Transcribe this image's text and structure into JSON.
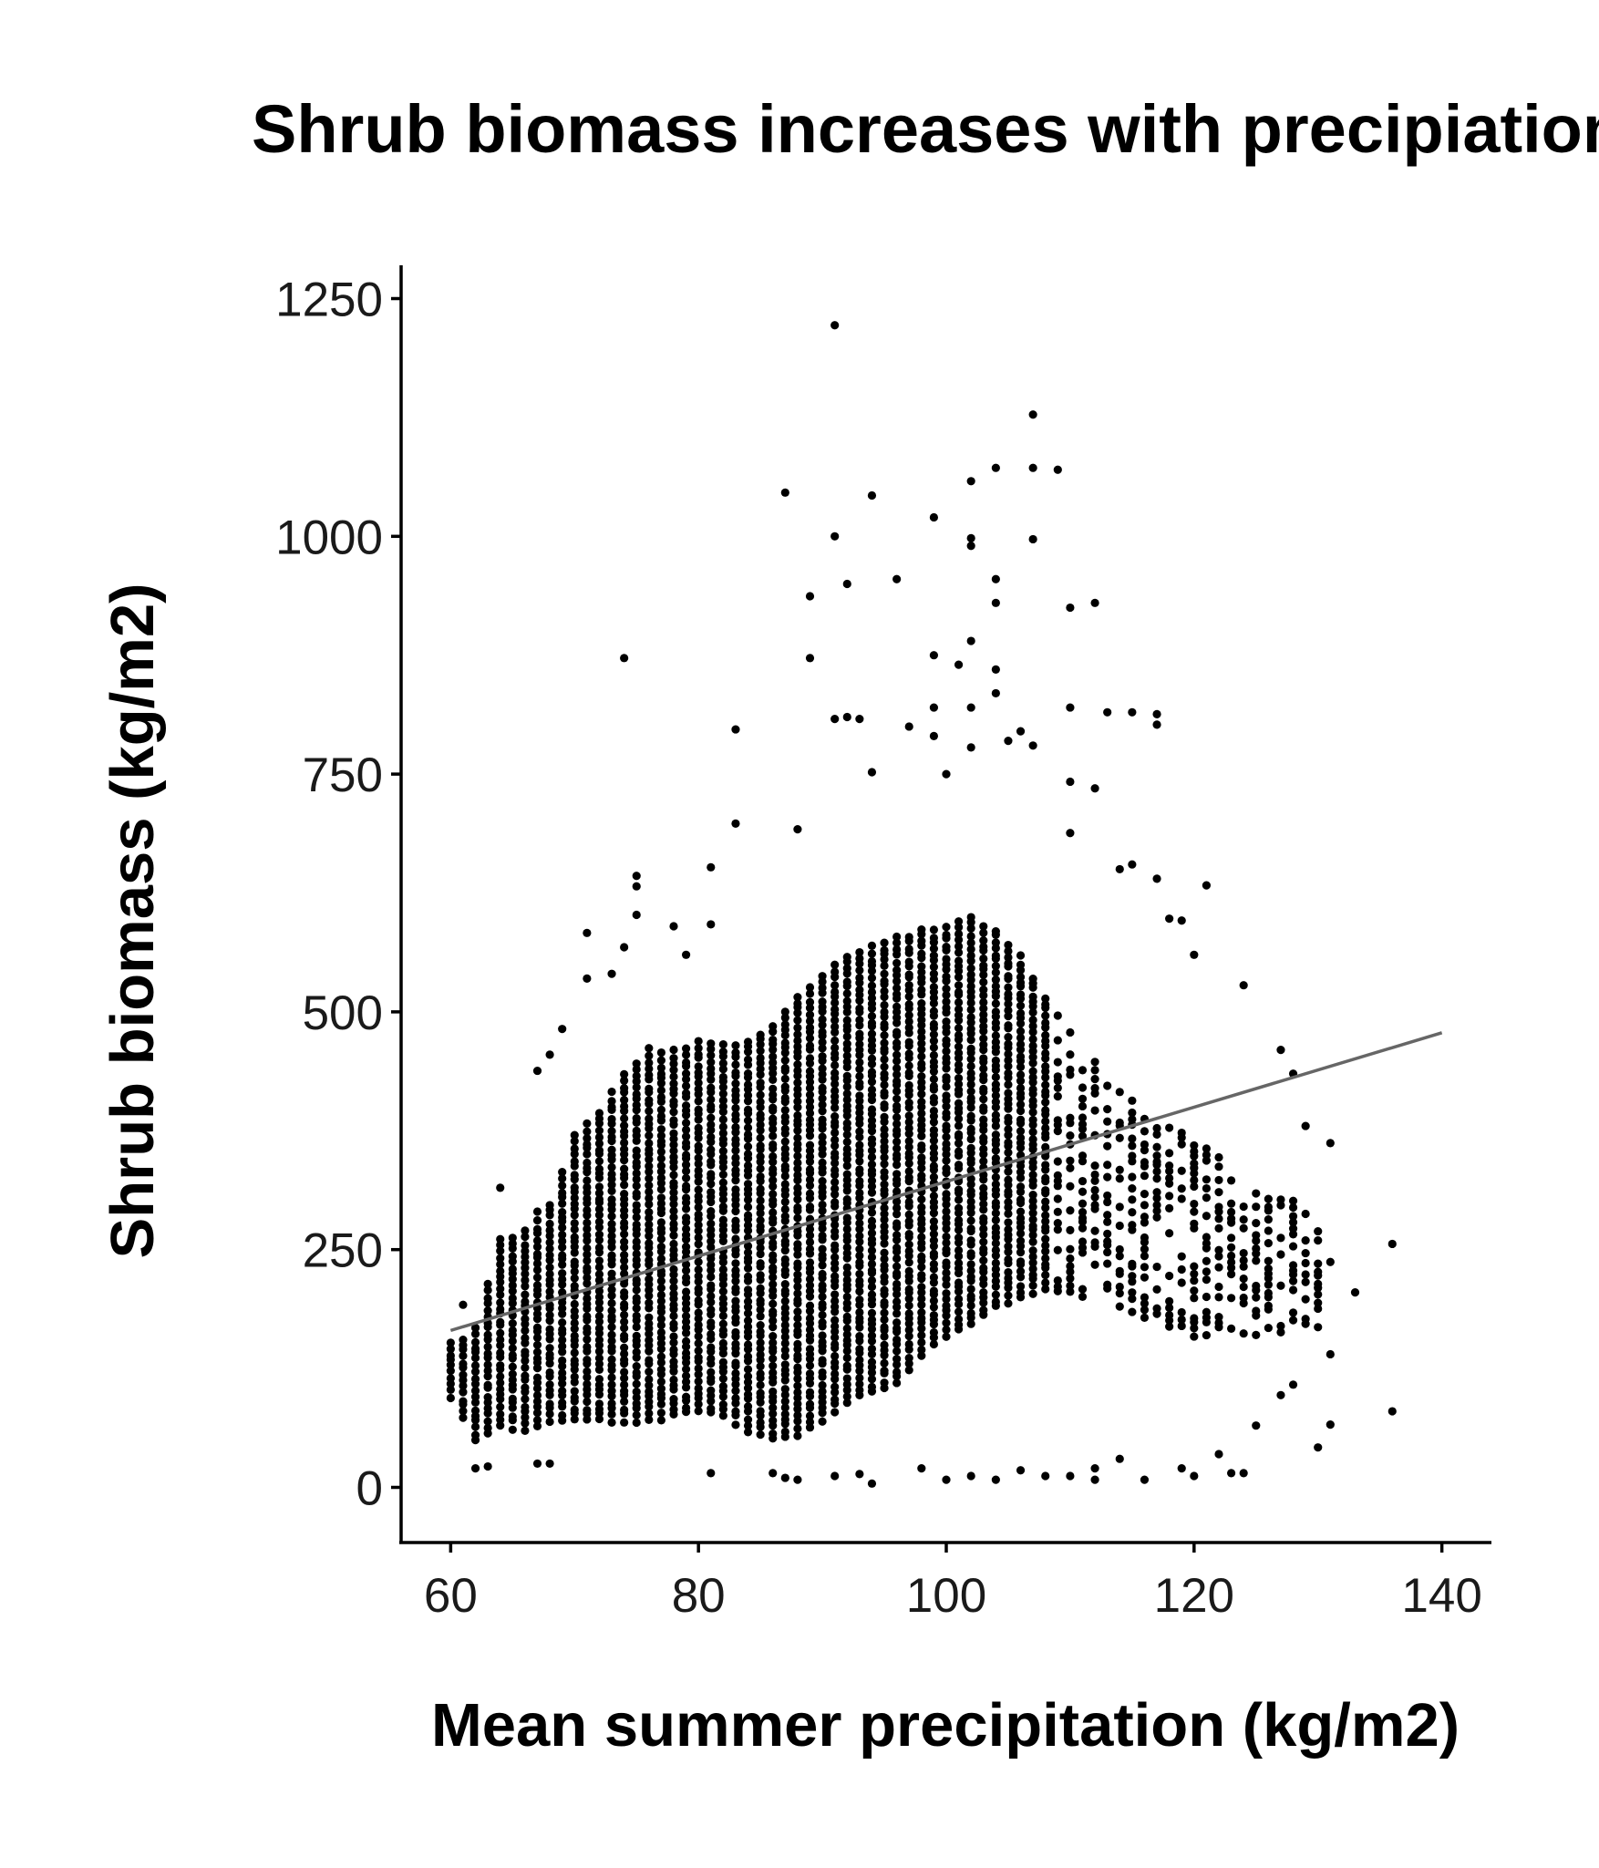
{
  "chart_data": {
    "type": "scatter",
    "title": "Shrub biomass increases with precipiation",
    "xlabel": "Mean summer precipitation (kg/m2)",
    "ylabel": "Shrub biomass (kg/m2)",
    "xlim": [
      56,
      144
    ],
    "ylim": [
      -58,
      1285
    ],
    "x_ticks": [
      60,
      80,
      100,
      120,
      140
    ],
    "y_ticks": [
      0,
      250,
      500,
      750,
      1000,
      1250
    ],
    "grid": false,
    "legend": "none",
    "point_color": "#000000",
    "trend_color": "#666666",
    "trend_line": {
      "x": [
        60,
        140
      ],
      "y": [
        165,
        478
      ]
    },
    "envelope": [
      {
        "x": 60,
        "low": 95,
        "high": 155
      },
      {
        "x": 62,
        "low": 50,
        "high": 170
      },
      {
        "x": 64,
        "low": 65,
        "high": 260
      },
      {
        "x": 66,
        "low": 60,
        "high": 270
      },
      {
        "x": 68,
        "low": 70,
        "high": 300
      },
      {
        "x": 70,
        "low": 70,
        "high": 370
      },
      {
        "x": 72,
        "low": 70,
        "high": 400
      },
      {
        "x": 74,
        "low": 70,
        "high": 440
      },
      {
        "x": 76,
        "low": 70,
        "high": 460
      },
      {
        "x": 78,
        "low": 75,
        "high": 460
      },
      {
        "x": 80,
        "low": 80,
        "high": 470
      },
      {
        "x": 82,
        "low": 75,
        "high": 470
      },
      {
        "x": 84,
        "low": 60,
        "high": 470
      },
      {
        "x": 86,
        "low": 50,
        "high": 490
      },
      {
        "x": 88,
        "low": 55,
        "high": 520
      },
      {
        "x": 90,
        "low": 70,
        "high": 540
      },
      {
        "x": 92,
        "low": 90,
        "high": 560
      },
      {
        "x": 94,
        "low": 100,
        "high": 570
      },
      {
        "x": 96,
        "low": 110,
        "high": 580
      },
      {
        "x": 98,
        "low": 140,
        "high": 590
      },
      {
        "x": 100,
        "low": 160,
        "high": 590
      },
      {
        "x": 102,
        "low": 170,
        "high": 600
      },
      {
        "x": 104,
        "low": 190,
        "high": 590
      },
      {
        "x": 106,
        "low": 200,
        "high": 560
      },
      {
        "x": 108,
        "low": 210,
        "high": 520
      },
      {
        "x": 110,
        "low": 200,
        "high": 480
      },
      {
        "x": 112,
        "low": 200,
        "high": 450
      },
      {
        "x": 114,
        "low": 190,
        "high": 420
      },
      {
        "x": 116,
        "low": 180,
        "high": 400
      },
      {
        "x": 118,
        "low": 170,
        "high": 380
      },
      {
        "x": 120,
        "low": 160,
        "high": 370
      },
      {
        "x": 122,
        "low": 160,
        "high": 350
      },
      {
        "x": 124,
        "low": 160,
        "high": 330
      },
      {
        "x": 126,
        "low": 160,
        "high": 310
      },
      {
        "x": 128,
        "low": 170,
        "high": 300
      },
      {
        "x": 130,
        "low": 170,
        "high": 280
      }
    ],
    "points": [
      {
        "x": 91,
        "y": 1222
      },
      {
        "x": 107,
        "y": 1128
      },
      {
        "x": 104,
        "y": 1072
      },
      {
        "x": 107,
        "y": 1072
      },
      {
        "x": 109,
        "y": 1070
      },
      {
        "x": 102,
        "y": 1058
      },
      {
        "x": 87,
        "y": 1046
      },
      {
        "x": 94,
        "y": 1043
      },
      {
        "x": 99,
        "y": 1020
      },
      {
        "x": 91,
        "y": 1000
      },
      {
        "x": 102,
        "y": 998
      },
      {
        "x": 107,
        "y": 997
      },
      {
        "x": 102,
        "y": 990
      },
      {
        "x": 96,
        "y": 955
      },
      {
        "x": 104,
        "y": 955
      },
      {
        "x": 92,
        "y": 950
      },
      {
        "x": 89,
        "y": 937
      },
      {
        "x": 104,
        "y": 930
      },
      {
        "x": 112,
        "y": 930
      },
      {
        "x": 110,
        "y": 925
      },
      {
        "x": 102,
        "y": 890
      },
      {
        "x": 74,
        "y": 872
      },
      {
        "x": 89,
        "y": 872
      },
      {
        "x": 99,
        "y": 875
      },
      {
        "x": 101,
        "y": 865
      },
      {
        "x": 104,
        "y": 860
      },
      {
        "x": 104,
        "y": 835
      },
      {
        "x": 99,
        "y": 820
      },
      {
        "x": 102,
        "y": 820
      },
      {
        "x": 110,
        "y": 820
      },
      {
        "x": 113,
        "y": 815
      },
      {
        "x": 115,
        "y": 815
      },
      {
        "x": 117,
        "y": 813
      },
      {
        "x": 91,
        "y": 808
      },
      {
        "x": 92,
        "y": 810
      },
      {
        "x": 93,
        "y": 808
      },
      {
        "x": 117,
        "y": 802
      },
      {
        "x": 97,
        "y": 800
      },
      {
        "x": 83,
        "y": 797
      },
      {
        "x": 106,
        "y": 795
      },
      {
        "x": 99,
        "y": 790
      },
      {
        "x": 105,
        "y": 785
      },
      {
        "x": 107,
        "y": 780
      },
      {
        "x": 102,
        "y": 778
      },
      {
        "x": 94,
        "y": 752
      },
      {
        "x": 100,
        "y": 750
      },
      {
        "x": 110,
        "y": 742
      },
      {
        "x": 112,
        "y": 735
      },
      {
        "x": 83,
        "y": 698
      },
      {
        "x": 88,
        "y": 692
      },
      {
        "x": 110,
        "y": 688
      },
      {
        "x": 75,
        "y": 643
      },
      {
        "x": 75,
        "y": 632
      },
      {
        "x": 81,
        "y": 652
      },
      {
        "x": 115,
        "y": 655
      },
      {
        "x": 114,
        "y": 650
      },
      {
        "x": 117,
        "y": 640
      },
      {
        "x": 121,
        "y": 633
      },
      {
        "x": 124,
        "y": 528
      },
      {
        "x": 75,
        "y": 602
      },
      {
        "x": 78,
        "y": 590
      },
      {
        "x": 81,
        "y": 592
      },
      {
        "x": 71,
        "y": 583
      },
      {
        "x": 74,
        "y": 568
      },
      {
        "x": 79,
        "y": 560
      },
      {
        "x": 73,
        "y": 540
      },
      {
        "x": 71,
        "y": 535
      },
      {
        "x": 118,
        "y": 598
      },
      {
        "x": 119,
        "y": 596
      },
      {
        "x": 120,
        "y": 560
      },
      {
        "x": 127,
        "y": 460
      },
      {
        "x": 128,
        "y": 435
      },
      {
        "x": 129,
        "y": 380
      },
      {
        "x": 131,
        "y": 362
      },
      {
        "x": 133,
        "y": 205
      },
      {
        "x": 136,
        "y": 256
      },
      {
        "x": 136,
        "y": 80
      },
      {
        "x": 130,
        "y": 42
      },
      {
        "x": 131,
        "y": 66
      },
      {
        "x": 131,
        "y": 140
      },
      {
        "x": 131,
        "y": 237
      },
      {
        "x": 125,
        "y": 65
      },
      {
        "x": 127,
        "y": 97
      },
      {
        "x": 128,
        "y": 108
      },
      {
        "x": 123,
        "y": 15
      },
      {
        "x": 124,
        "y": 15
      },
      {
        "x": 122,
        "y": 35
      },
      {
        "x": 120,
        "y": 12
      },
      {
        "x": 119,
        "y": 20
      },
      {
        "x": 116,
        "y": 8
      },
      {
        "x": 114,
        "y": 30
      },
      {
        "x": 112,
        "y": 20
      },
      {
        "x": 112,
        "y": 8
      },
      {
        "x": 110,
        "y": 12
      },
      {
        "x": 108,
        "y": 12
      },
      {
        "x": 106,
        "y": 18
      },
      {
        "x": 104,
        "y": 8
      },
      {
        "x": 102,
        "y": 12
      },
      {
        "x": 100,
        "y": 8
      },
      {
        "x": 98,
        "y": 20
      },
      {
        "x": 94,
        "y": 4
      },
      {
        "x": 93,
        "y": 14
      },
      {
        "x": 91,
        "y": 12
      },
      {
        "x": 88,
        "y": 8
      },
      {
        "x": 87,
        "y": 10
      },
      {
        "x": 86,
        "y": 15
      },
      {
        "x": 81,
        "y": 15
      },
      {
        "x": 62,
        "y": 20
      },
      {
        "x": 63,
        "y": 22
      },
      {
        "x": 67,
        "y": 25
      },
      {
        "x": 68,
        "y": 25
      },
      {
        "x": 61,
        "y": 192
      },
      {
        "x": 64,
        "y": 315
      },
      {
        "x": 67,
        "y": 290
      },
      {
        "x": 69,
        "y": 482
      },
      {
        "x": 68,
        "y": 455
      },
      {
        "x": 67,
        "y": 438
      }
    ]
  }
}
